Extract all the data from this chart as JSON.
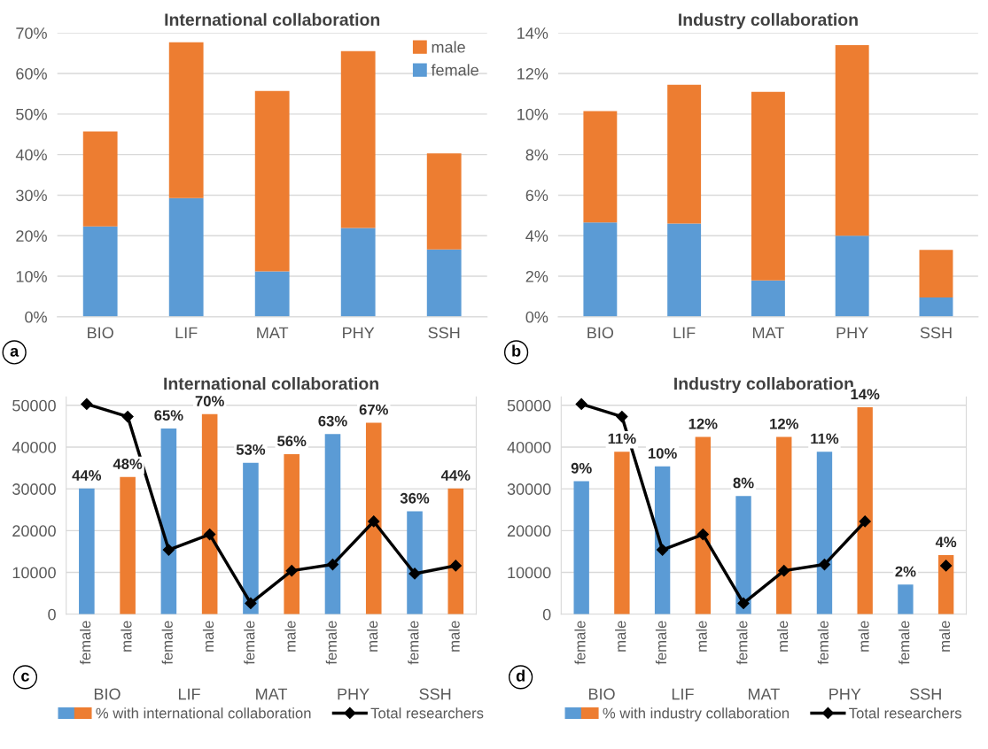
{
  "chart_data": [
    {
      "type": "bar",
      "stacked": true,
      "title": "International collaboration",
      "categories": [
        "BIO",
        "LIF",
        "MAT",
        "PHY",
        "SSH"
      ],
      "series": [
        {
          "name": "female",
          "color": "#5b9bd5",
          "values": [
            22.3,
            29.3,
            11.2,
            21.9,
            16.6
          ]
        },
        {
          "name": "male",
          "color": "#ed7d31",
          "values": [
            23.4,
            38.4,
            44.5,
            43.6,
            23.7
          ]
        }
      ],
      "ylim": [
        0,
        70
      ],
      "yticks": [
        {
          "value": 0,
          "label": "0%"
        },
        {
          "value": 10,
          "label": "10%"
        },
        {
          "value": 20,
          "label": "20%"
        },
        {
          "value": 30,
          "label": "30%"
        },
        {
          "value": 40,
          "label": "40%"
        },
        {
          "value": 50,
          "label": "50%"
        },
        {
          "value": 60,
          "label": "60%"
        },
        {
          "value": 70,
          "label": "70%"
        }
      ],
      "grid": "y",
      "legend": "top right",
      "annotations": [
        "a"
      ]
    },
    {
      "type": "bar",
      "stacked": true,
      "title": "Industry collaboration",
      "categories": [
        "BIO",
        "LIF",
        "MAT",
        "PHY",
        "SSH"
      ],
      "series": [
        {
          "color": "#5b9bd5",
          "values": [
            4.65,
            4.6,
            1.8,
            4.0,
            0.95
          ]
        },
        {
          "color": "#ed7d31",
          "values": [
            5.5,
            6.85,
            9.3,
            9.4,
            2.35
          ]
        }
      ],
      "ylim": [
        0,
        14
      ],
      "yticks": [
        {
          "value": 0,
          "label": "0%"
        },
        {
          "value": 2,
          "label": "2%"
        },
        {
          "value": 4,
          "label": "4%"
        },
        {
          "value": 6,
          "label": "6%"
        },
        {
          "value": 8,
          "label": "8%"
        },
        {
          "value": 10,
          "label": "10%"
        },
        {
          "value": 12,
          "label": "12%"
        },
        {
          "value": 14,
          "label": "14%"
        }
      ],
      "grid": "y",
      "annotations": [
        "b"
      ]
    },
    {
      "type": "bar",
      "title": "International collaboration",
      "categories": [
        "female",
        "male",
        "female",
        "male",
        "female",
        "male",
        "female",
        "male",
        "female",
        "male"
      ],
      "series": [
        {
          "name": "% with international collaboration",
          "axis": "y2",
          "colors": [
            "#5b9bd5",
            "#ed7d31",
            "#5b9bd5",
            "#ed7d31",
            "#5b9bd5",
            "#ed7d31",
            "#5b9bd5",
            "#ed7d31",
            "#5b9bd5",
            "#ed7d31"
          ],
          "values": [
            44,
            48,
            65,
            70,
            53,
            56,
            63,
            67,
            36,
            44
          ],
          "value_labels": [
            "44%",
            "48%",
            "65%",
            "70%",
            "53%",
            "56%",
            "63%",
            "67%",
            "36%",
            "44%"
          ]
        },
        {
          "name": "Total researchers",
          "type": "line",
          "color": "#000000",
          "values": [
            50300,
            47300,
            15400,
            19100,
            2600,
            10400,
            11900,
            22200,
            9700,
            11600
          ]
        }
      ],
      "ylim": [
        0,
        52000
      ],
      "yticks": [
        0,
        10000,
        20000,
        30000,
        40000,
        50000
      ],
      "y2lim": [
        0,
        76
      ],
      "marker": "diamond",
      "line_style": "solid",
      "grid": "y",
      "legend": "bottom",
      "annotations": [
        "c",
        "BIO",
        "LIF",
        "MAT",
        "PHY",
        "SSH"
      ]
    },
    {
      "type": "bar",
      "title": "Industry collaboration",
      "categories": [
        "female",
        "male",
        "female",
        "male",
        "female",
        "male",
        "female",
        "male",
        "female",
        "male"
      ],
      "series": [
        {
          "name": "% with industry collaboration",
          "axis": "y2",
          "colors": [
            "#5b9bd5",
            "#ed7d31",
            "#5b9bd5",
            "#ed7d31",
            "#5b9bd5",
            "#ed7d31",
            "#5b9bd5",
            "#ed7d31",
            "#5b9bd5",
            "#ed7d31"
          ],
          "values": [
            9,
            11,
            10,
            12,
            8,
            12,
            11,
            14,
            2,
            4
          ],
          "value_labels": [
            "9%",
            "11%",
            "10%",
            "12%",
            "8%",
            "12%",
            "11%",
            "14%",
            "2%",
            "4%"
          ]
        },
        {
          "name": "Total researchers",
          "type": "line",
          "color": "#000000",
          "values": [
            50300,
            47300,
            15400,
            19100,
            2600,
            10400,
            11900,
            22200,
            null,
            11600
          ]
        }
      ],
      "ylim": [
        0,
        52000
      ],
      "yticks": [
        0,
        10000,
        20000,
        30000,
        40000,
        50000
      ],
      "y2lim": [
        0,
        14.7
      ],
      "marker": "diamond",
      "line_style": "solid",
      "grid": "y",
      "legend": "bottom",
      "annotations": [
        "d",
        "BIO",
        "LIF",
        "MAT",
        "PHY",
        "SSH"
      ]
    }
  ]
}
